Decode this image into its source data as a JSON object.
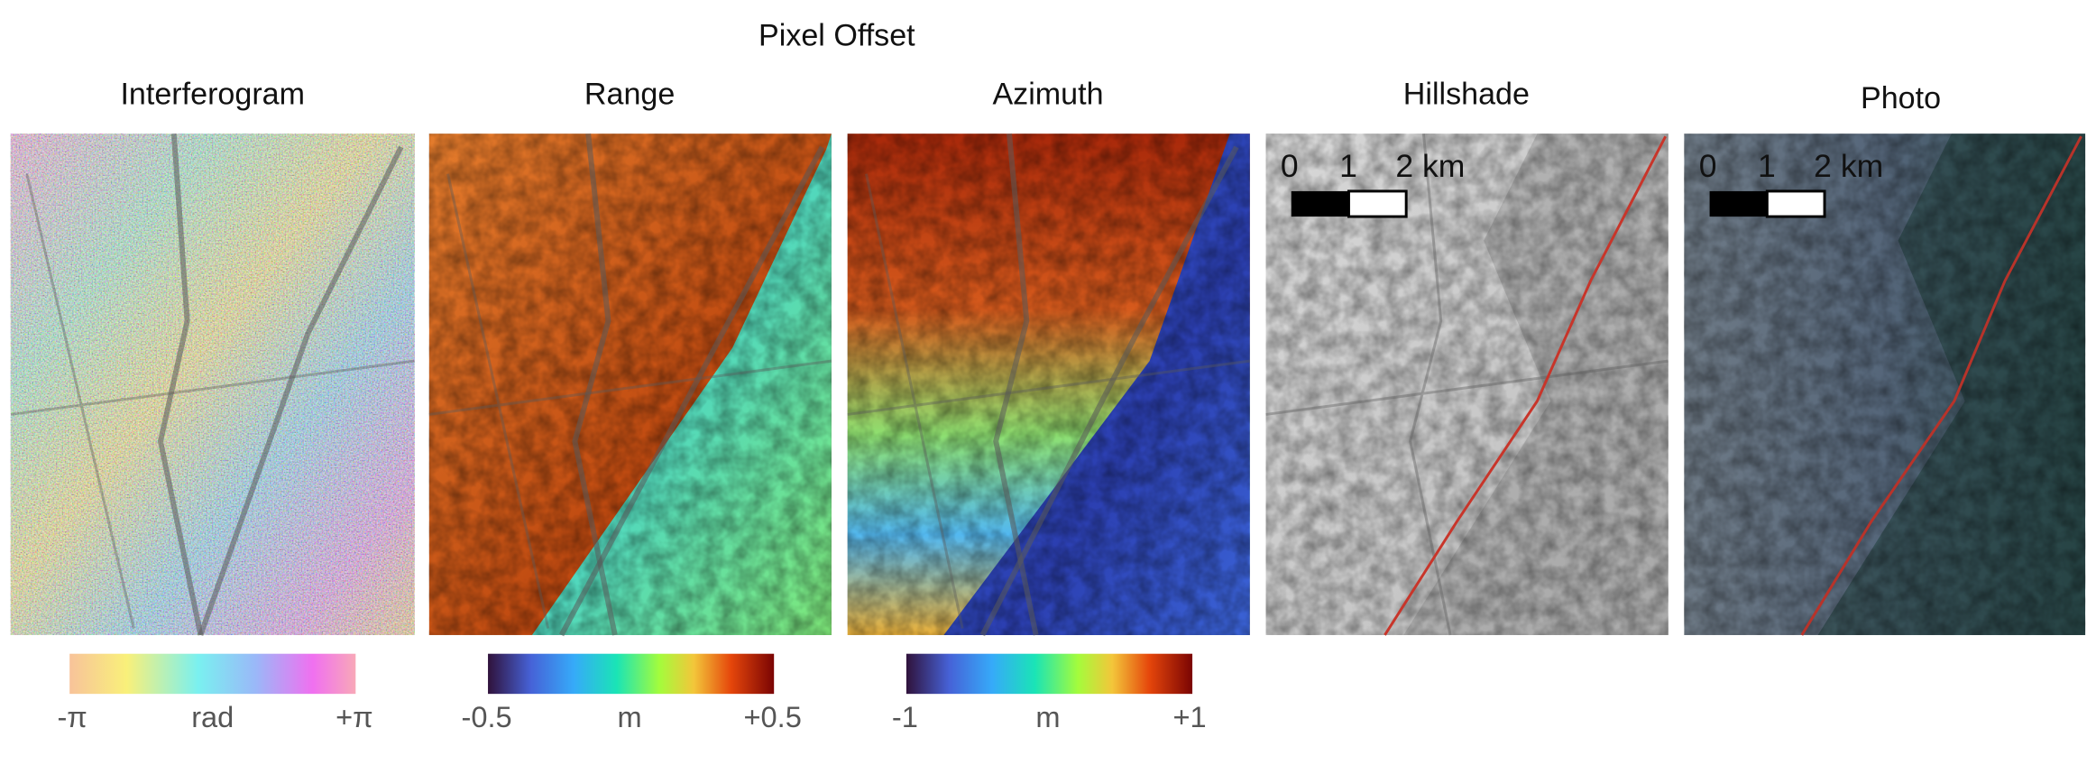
{
  "group_title": "Pixel Offset",
  "panels": [
    {
      "title": "Interferogram"
    },
    {
      "title": "Range"
    },
    {
      "title": "Azimuth"
    },
    {
      "title": "Hillshade"
    },
    {
      "title": "Photo"
    }
  ],
  "colorbars": [
    {
      "min_label": "-π",
      "unit": "rad",
      "max_label": "+π"
    },
    {
      "min_label": "-0.5",
      "unit": "m",
      "max_label": "+0.5"
    },
    {
      "min_label": "-1",
      "unit": "m",
      "max_label": "+1"
    }
  ],
  "scale_bars": [
    {
      "labels": [
        "0",
        "1",
        "2 km"
      ]
    },
    {
      "labels": [
        "0",
        "1",
        "2 km"
      ]
    }
  ]
}
